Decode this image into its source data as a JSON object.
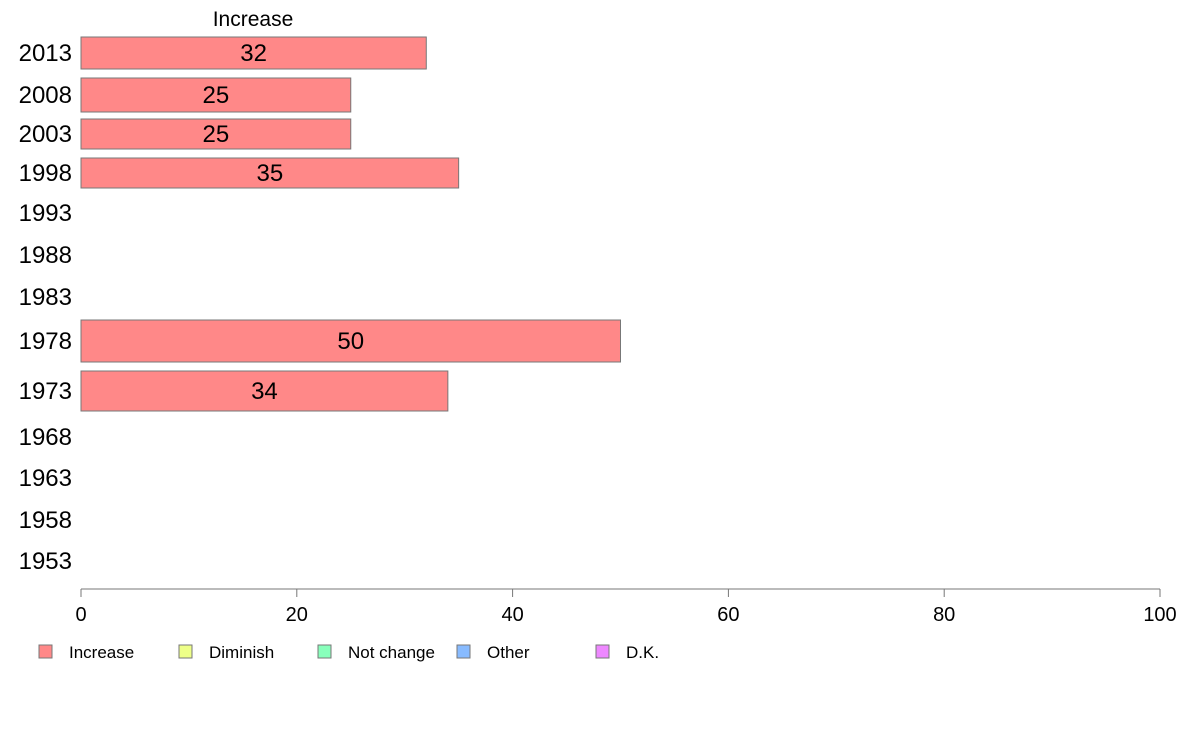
{
  "chart_data": {
    "type": "bar",
    "orientation": "horizontal",
    "stacked": true,
    "column_header": "Increase",
    "categories": [
      "2013",
      "2008",
      "2003",
      "1998",
      "1993",
      "1988",
      "1983",
      "1978",
      "1973",
      "1968",
      "1963",
      "1958",
      "1953"
    ],
    "series": [
      {
        "name": "Increase",
        "color": "#ff8888",
        "values": [
          32,
          25,
          25,
          35,
          null,
          null,
          null,
          50,
          34,
          null,
          null,
          null,
          null
        ]
      },
      {
        "name": "Diminish",
        "color": "#eeff88",
        "values": [
          null,
          null,
          null,
          null,
          null,
          null,
          null,
          null,
          null,
          null,
          null,
          null,
          null
        ]
      },
      {
        "name": "Not change",
        "color": "#88ffbb",
        "values": [
          null,
          null,
          null,
          null,
          null,
          null,
          null,
          null,
          null,
          null,
          null,
          null,
          null
        ]
      },
      {
        "name": "Other",
        "color": "#88bbff",
        "values": [
          null,
          null,
          null,
          null,
          null,
          null,
          null,
          null,
          null,
          null,
          null,
          null,
          null
        ]
      },
      {
        "name": "D.K.",
        "color": "#ee88ff",
        "values": [
          null,
          null,
          null,
          null,
          null,
          null,
          null,
          null,
          null,
          null,
          null,
          null,
          null
        ]
      }
    ],
    "x_ticks": [
      0,
      20,
      40,
      60,
      80,
      100
    ],
    "xlim": [
      0,
      100
    ],
    "data_labels": true,
    "grid": false,
    "legend_position": "bottom-left"
  }
}
